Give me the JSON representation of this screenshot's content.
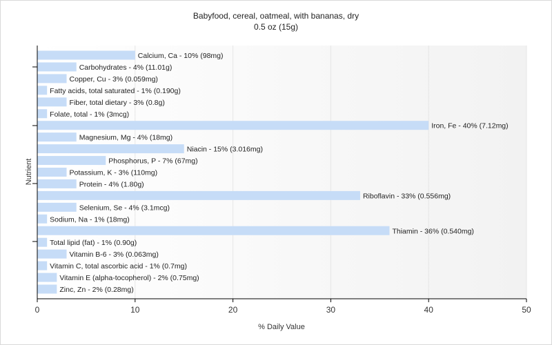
{
  "chart_data": {
    "type": "bar",
    "orientation": "horizontal",
    "title": "Babyfood, cereal, oatmeal, with bananas, dry",
    "subtitle": "0.5 oz (15g)",
    "xlabel": "% Daily Value",
    "ylabel": "Nutrient",
    "xlim": [
      0,
      50
    ],
    "xticks": [
      0,
      10,
      20,
      30,
      40,
      50
    ],
    "grid": true,
    "bar_color": "#c6dcf7",
    "categories": [
      "Calcium, Ca",
      "Carbohydrates",
      "Copper, Cu",
      "Fatty acids, total saturated",
      "Fiber, total dietary",
      "Folate, total",
      "Iron, Fe",
      "Magnesium, Mg",
      "Niacin",
      "Phosphorus, P",
      "Potassium, K",
      "Protein",
      "Riboflavin",
      "Selenium, Se",
      "Sodium, Na",
      "Thiamin",
      "Total lipid (fat)",
      "Vitamin B-6",
      "Vitamin C, total ascorbic acid",
      "Vitamin E (alpha-tocopherol)",
      "Zinc, Zn"
    ],
    "values": [
      10,
      4,
      3,
      1,
      3,
      1,
      40,
      4,
      15,
      7,
      3,
      4,
      33,
      4,
      1,
      36,
      1,
      3,
      1,
      2,
      2
    ],
    "labels": [
      "Calcium, Ca - 10% (98mg)",
      "Carbohydrates - 4% (11.01g)",
      "Copper, Cu - 3% (0.059mg)",
      "Fatty acids, total saturated - 1% (0.190g)",
      "Fiber, total dietary - 3% (0.8g)",
      "Folate, total - 1% (3mcg)",
      "Iron, Fe - 40% (7.12mg)",
      "Magnesium, Mg - 4% (18mg)",
      "Niacin - 15% (3.016mg)",
      "Phosphorus, P - 7% (67mg)",
      "Potassium, K - 3% (110mg)",
      "Protein - 4% (1.80g)",
      "Riboflavin - 33% (0.556mg)",
      "Selenium, Se - 4% (3.1mcg)",
      "Sodium, Na - 1% (18mg)",
      "Thiamin - 36% (0.540mg)",
      "Total lipid (fat) - 1% (0.90g)",
      "Vitamin B-6 - 3% (0.063mg)",
      "Vitamin C, total ascorbic acid - 1% (0.7mg)",
      "Vitamin E (alpha-tocopherol) - 2% (0.75mg)",
      "Zinc, Zn - 2% (0.28mg)"
    ]
  }
}
